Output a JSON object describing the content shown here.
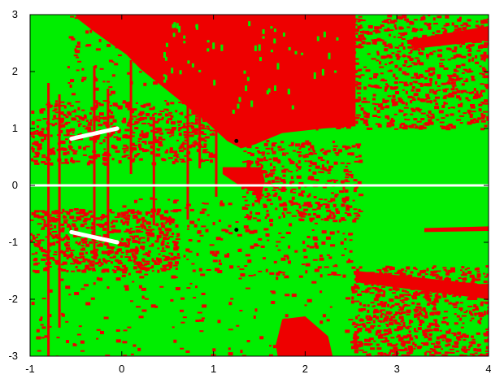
{
  "chart_data": {
    "type": "heatmap",
    "title": "",
    "xlabel": "",
    "ylabel": "",
    "xlim": [
      -1,
      4
    ],
    "ylim": [
      -3,
      3
    ],
    "x_ticks": [
      "-1",
      "0",
      "1",
      "2",
      "3",
      "4"
    ],
    "y_ticks": [
      "-3",
      "-2",
      "-1",
      "0",
      "1",
      "2",
      "3"
    ],
    "legend": "none",
    "grid": false,
    "colors": {
      "background_region": "#00ee00",
      "red_region": "#ee0000",
      "white_marks": "#ffffff",
      "black_marks": "#000000"
    },
    "red_regions": [
      {
        "name": "top-center-red-fan",
        "polygon": [
          [
            -0.5,
            3.0
          ],
          [
            2.55,
            3.0
          ],
          [
            2.55,
            1.04
          ],
          [
            2.2,
            1.0
          ],
          [
            1.75,
            0.92
          ],
          [
            1.45,
            0.72
          ],
          [
            1.3,
            0.65
          ],
          [
            1.15,
            0.78
          ],
          [
            0.9,
            1.15
          ],
          [
            0.55,
            1.6
          ],
          [
            0.2,
            2.05
          ],
          [
            0.05,
            2.3
          ],
          [
            -0.3,
            2.7
          ],
          [
            -0.5,
            2.95
          ]
        ]
      },
      {
        "name": "center-red-wedge",
        "polygon": [
          [
            1.1,
            0.32
          ],
          [
            1.52,
            0.32
          ],
          [
            1.56,
            0.08
          ],
          [
            1.5,
            -0.35
          ],
          [
            1.45,
            -0.12
          ],
          [
            1.3,
            -0.02
          ],
          [
            1.1,
            0.2
          ]
        ]
      },
      {
        "name": "bottom-red-hatch",
        "polygon": [
          [
            1.7,
            -3.0
          ],
          [
            2.3,
            -3.0
          ],
          [
            2.25,
            -2.65
          ],
          [
            2.0,
            -2.3
          ],
          [
            1.75,
            -2.35
          ],
          [
            1.68,
            -2.8
          ]
        ]
      },
      {
        "name": "right-upper-red-band",
        "polygon": [
          [
            3.1,
            2.55
          ],
          [
            4.0,
            2.8
          ],
          [
            4.0,
            2.55
          ],
          [
            3.2,
            2.4
          ]
        ]
      },
      {
        "name": "right-red-strip",
        "polygon": [
          [
            3.3,
            -0.75
          ],
          [
            4.0,
            -0.72
          ],
          [
            4.0,
            -0.8
          ],
          [
            3.3,
            -0.82
          ]
        ]
      },
      {
        "name": "right-lower-red-band",
        "polygon": [
          [
            2.55,
            -1.5
          ],
          [
            4.0,
            -1.75
          ],
          [
            4.0,
            -2.0
          ],
          [
            2.55,
            -1.7
          ]
        ]
      }
    ],
    "speckle_regions": [
      {
        "name": "upper-right-speckle",
        "x": [
          2.0,
          4.0
        ],
        "y": [
          1.0,
          3.0
        ],
        "count": 900
      },
      {
        "name": "left-upper-speckle",
        "x": [
          -1.0,
          1.0
        ],
        "y": [
          0.4,
          1.5
        ],
        "count": 550
      },
      {
        "name": "left-lower-speckle",
        "x": [
          -1.0,
          0.6
        ],
        "y": [
          -1.5,
          -0.4
        ],
        "count": 550
      },
      {
        "name": "lower-right-speckle",
        "x": [
          2.5,
          4.0
        ],
        "y": [
          -3.0,
          -1.4
        ],
        "count": 700
      },
      {
        "name": "center-speckle",
        "x": [
          1.3,
          2.6
        ],
        "y": [
          -0.6,
          0.8
        ],
        "count": 350
      },
      {
        "name": "mid-speckle",
        "x": [
          0.0,
          2.5
        ],
        "y": [
          -1.6,
          -0.2
        ],
        "count": 250
      },
      {
        "name": "bottom-speckle",
        "x": [
          -1.0,
          4.0
        ],
        "y": [
          -3.0,
          -1.6
        ],
        "count": 200
      },
      {
        "name": "top-left-speckle",
        "x": [
          -0.6,
          0.4
        ],
        "y": [
          1.6,
          3.0
        ],
        "count": 80
      }
    ],
    "red_vertical_lines": [
      {
        "x": -0.8,
        "y": [
          -3.0,
          1.8
        ]
      },
      {
        "x": -0.68,
        "y": [
          -2.5,
          1.6
        ]
      },
      {
        "x": -0.3,
        "y": [
          -1.3,
          2.1
        ]
      },
      {
        "x": -0.15,
        "y": [
          -1.0,
          1.7
        ]
      },
      {
        "x": 0.1,
        "y": [
          0.2,
          2.2
        ]
      },
      {
        "x": 0.35,
        "y": [
          -0.7,
          1.2
        ]
      },
      {
        "x": 0.72,
        "y": [
          -0.6,
          3.0
        ]
      },
      {
        "x": 0.85,
        "y": [
          0.3,
          2.4
        ]
      },
      {
        "x": 1.03,
        "y": [
          -0.2,
          1.0
        ]
      }
    ],
    "white_line_y": 0,
    "white_segments": [
      {
        "x": [
          -0.55,
          -0.05
        ],
        "y": [
          0.82,
          1.0
        ]
      },
      {
        "x": [
          -0.55,
          -0.05
        ],
        "y": [
          -0.82,
          -1.0
        ]
      }
    ],
    "black_points": [
      {
        "x": 1.25,
        "y": 0.78
      },
      {
        "x": 1.25,
        "y": -0.78
      }
    ]
  }
}
